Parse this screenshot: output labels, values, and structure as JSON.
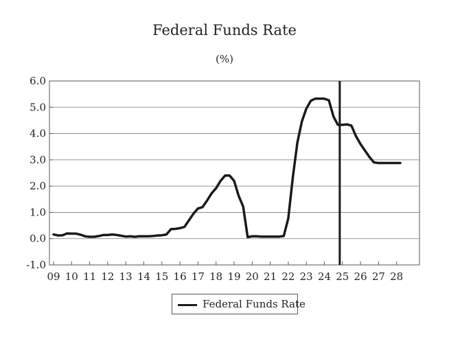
{
  "chart_data": {
    "type": "line",
    "title": "Federal Funds Rate",
    "subtitle": "(%)",
    "xlabel": "",
    "ylabel": "",
    "ylim": [
      -1.0,
      6.0
    ],
    "yticks": [
      "6.0",
      "5.0",
      "4.0",
      "3.0",
      "2.0",
      "1.0",
      "0.0",
      "-1.0"
    ],
    "ytick_values": [
      6,
      5,
      4,
      3,
      2,
      1,
      0,
      -1
    ],
    "xlim": [
      9,
      28.2
    ],
    "xticks": [
      "09",
      "10",
      "11",
      "12",
      "13",
      "14",
      "15",
      "16",
      "17",
      "18",
      "19",
      "20",
      "21",
      "22",
      "23",
      "24",
      "25",
      "26",
      "27",
      "28"
    ],
    "xtick_values": [
      9,
      10,
      11,
      12,
      13,
      14,
      15,
      16,
      17,
      18,
      19,
      20,
      21,
      22,
      23,
      24,
      25,
      26,
      27,
      28
    ],
    "grid": "horizontal",
    "vline": 24.85,
    "legend": "bottom",
    "series": [
      {
        "name": "Federal Funds Rate",
        "x": [
          9.0,
          9.25,
          9.5,
          9.75,
          10.0,
          10.25,
          10.5,
          10.75,
          11.0,
          11.25,
          11.5,
          11.75,
          12.0,
          12.25,
          12.5,
          12.75,
          13.0,
          13.25,
          13.5,
          13.75,
          14.0,
          14.25,
          14.5,
          14.75,
          15.0,
          15.25,
          15.5,
          15.75,
          16.0,
          16.25,
          16.5,
          16.75,
          17.0,
          17.25,
          17.5,
          17.75,
          18.0,
          18.25,
          18.5,
          18.75,
          19.0,
          19.25,
          19.5,
          19.75,
          20.0,
          20.25,
          20.5,
          20.75,
          21.0,
          21.25,
          21.5,
          21.75,
          22.0,
          22.25,
          22.5,
          22.75,
          23.0,
          23.25,
          23.5,
          23.75,
          24.0,
          24.25,
          24.5,
          24.75,
          25.0,
          25.25,
          25.5,
          25.75,
          26.0,
          26.25,
          26.5,
          26.75,
          27.0,
          27.25,
          27.5,
          27.75,
          28.0,
          28.2
        ],
        "values": [
          0.16,
          0.12,
          0.13,
          0.2,
          0.19,
          0.19,
          0.15,
          0.09,
          0.07,
          0.07,
          0.1,
          0.14,
          0.14,
          0.16,
          0.14,
          0.11,
          0.08,
          0.09,
          0.07,
          0.09,
          0.09,
          0.09,
          0.1,
          0.12,
          0.13,
          0.16,
          0.36,
          0.37,
          0.4,
          0.45,
          0.7,
          0.95,
          1.15,
          1.2,
          1.45,
          1.72,
          1.92,
          2.2,
          2.4,
          2.4,
          2.2,
          1.63,
          1.22,
          0.06,
          0.09,
          0.09,
          0.08,
          0.08,
          0.08,
          0.08,
          0.08,
          0.1,
          0.77,
          2.33,
          3.65,
          4.45,
          4.95,
          5.25,
          5.33,
          5.33,
          5.33,
          5.26,
          4.65,
          4.33,
          4.33,
          4.35,
          4.3,
          3.9,
          3.6,
          3.35,
          3.1,
          2.9,
          2.88,
          2.88,
          2.88,
          2.88,
          2.88,
          2.88
        ]
      }
    ]
  }
}
